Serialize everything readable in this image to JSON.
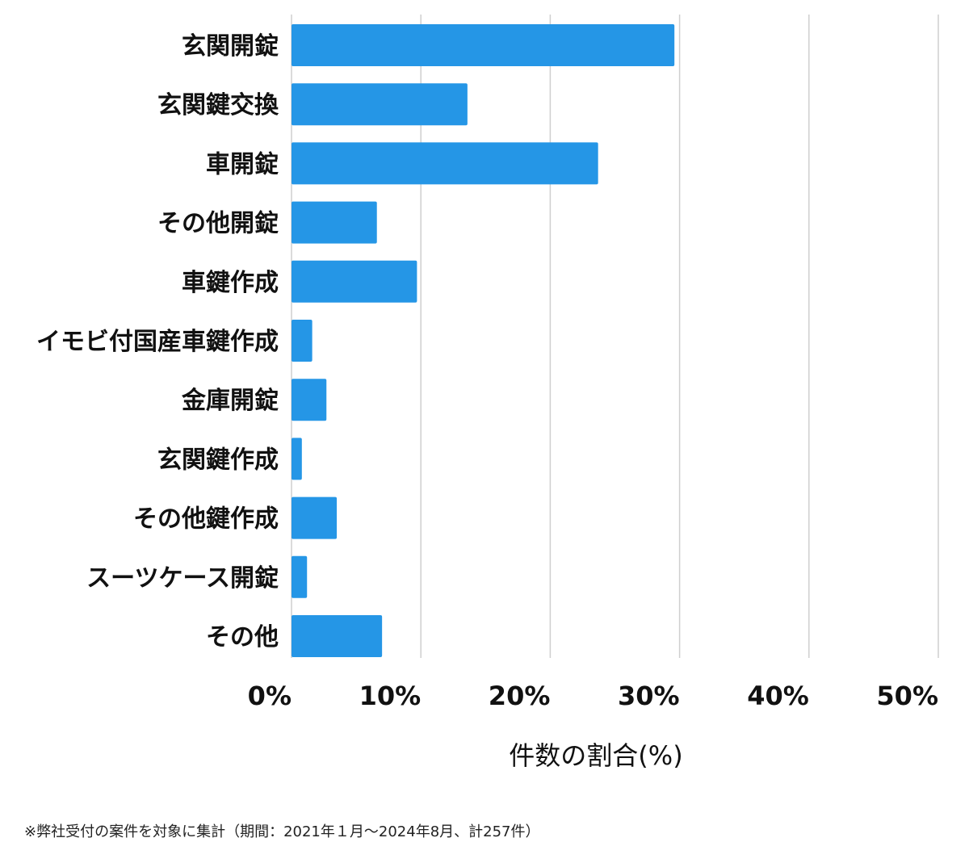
{
  "chart_data": {
    "type": "bar",
    "orientation": "horizontal",
    "categories": [
      "玄関開錠",
      "玄関鍵交換",
      "車開錠",
      "その他開錠",
      "車鍵作成",
      "イモビ付国産車鍵作成",
      "金庫開錠",
      "玄関鍵作成",
      "その他鍵作成",
      "スーツケース開錠",
      "その他"
    ],
    "values": [
      29.6,
      13.6,
      23.7,
      6.6,
      9.7,
      1.6,
      2.7,
      0.8,
      3.5,
      1.2,
      7.0
    ],
    "xlim": [
      0,
      50
    ],
    "xticks": [
      0,
      10,
      20,
      30,
      40,
      50
    ],
    "xtick_labels": [
      "0%",
      "10%",
      "20%",
      "30%",
      "40%",
      "50%"
    ],
    "xlabel": "件数の割合(%)",
    "ylabel": "",
    "title": "",
    "grid": "vertical",
    "bar_color": "#2596e6"
  },
  "footnote": "※弊社受付の案件を対象に集計（期間：2021年１月〜2024年8月、計257件）"
}
